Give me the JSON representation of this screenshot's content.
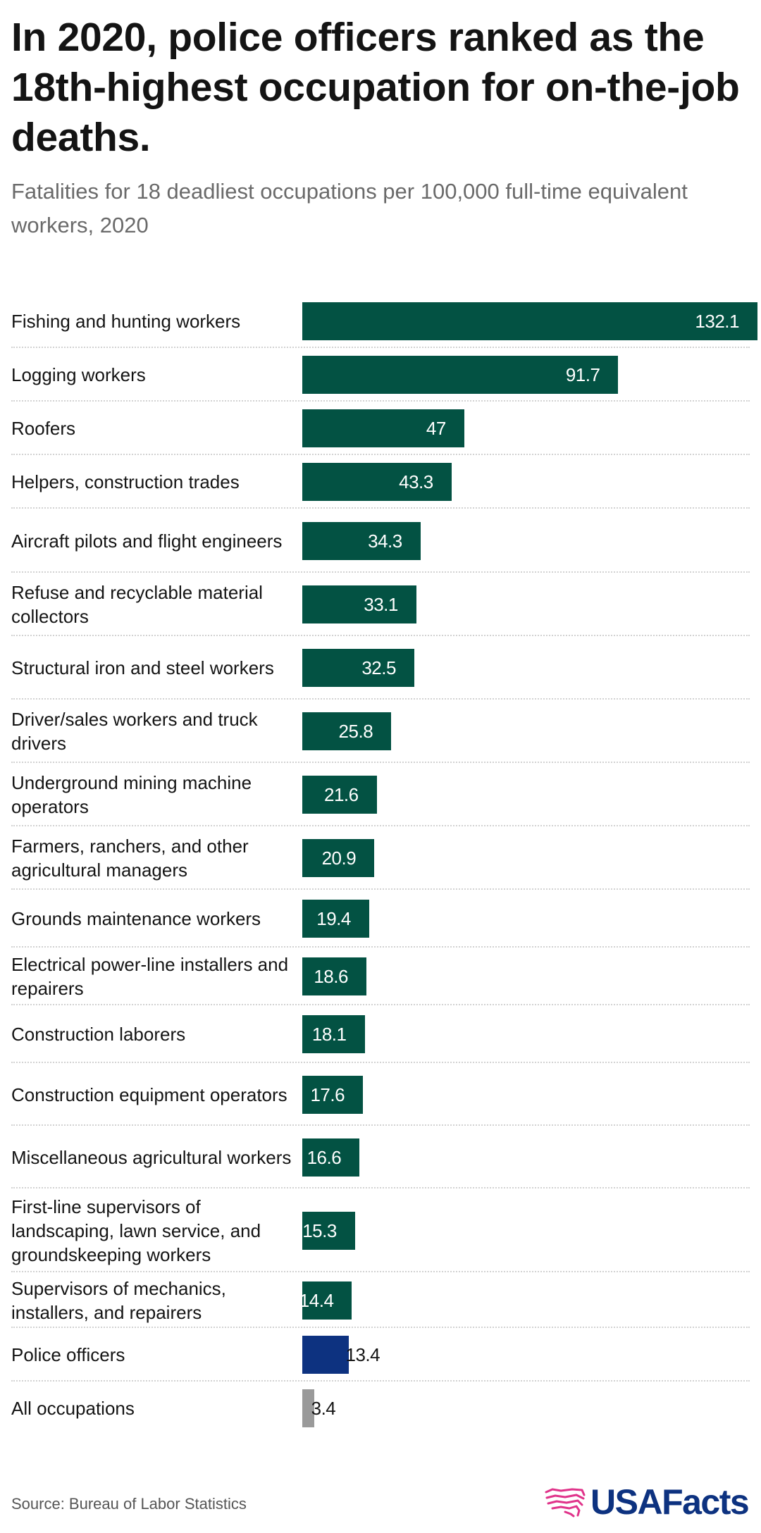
{
  "title": "In 2020, police officers ranked as the 18th-highest occupation for on-the-job deaths.",
  "subtitle": "Fatalities for 18 deadliest occupations per 100,000 full-time equivalent workers, 2020",
  "source": "Source: Bureau of Labor Statistics",
  "brand": "USAFacts",
  "colors": {
    "bar": "#035243",
    "highlight": "#0d3280",
    "total": "#9a9a9a",
    "brand_mark": "#e0338a"
  },
  "chart_data": {
    "type": "bar",
    "orientation": "horizontal",
    "title": "In 2020, police officers ranked as the 18th-highest occupation for on-the-job deaths.",
    "subtitle": "Fatalities for 18 deadliest occupations per 100,000 full-time equivalent workers, 2020",
    "grid": false,
    "xlim": [
      0,
      132.1
    ],
    "categories": [
      "Fishing and hunting workers",
      "Logging workers",
      "Roofers",
      "Helpers, construction trades",
      "Aircraft pilots and flight engineers",
      "Refuse and recyclable material collectors",
      "Structural iron and steel workers",
      "Driver/sales workers and truck drivers",
      "Underground mining machine operators",
      "Farmers, ranchers, and other agricultural managers",
      "Grounds maintenance workers",
      "Electrical power-line installers and repairers",
      "Construction laborers",
      "Construction equipment operators",
      "Miscellaneous agricultural workers",
      "First-line supervisors of landscaping, lawn service, and groundskeeping workers",
      "Supervisors of mechanics, installers, and repairers",
      "Police officers",
      "All occupations"
    ],
    "values": [
      132.1,
      91.7,
      47,
      43.3,
      34.3,
      33.1,
      32.5,
      25.8,
      21.6,
      20.9,
      19.4,
      18.6,
      18.1,
      17.6,
      16.6,
      15.3,
      14.4,
      13.4,
      3.4
    ],
    "value_labels": [
      "132.1",
      "91.7",
      "47",
      "43.3",
      "34.3",
      "33.1",
      "32.5",
      "25.8",
      "21.6",
      "20.9",
      "19.4",
      "18.6",
      "18.1",
      "17.6",
      "16.6",
      "15.3",
      "14.4",
      "13.4",
      "3.4"
    ],
    "highlight": "Police officers",
    "total": "All occupations"
  }
}
